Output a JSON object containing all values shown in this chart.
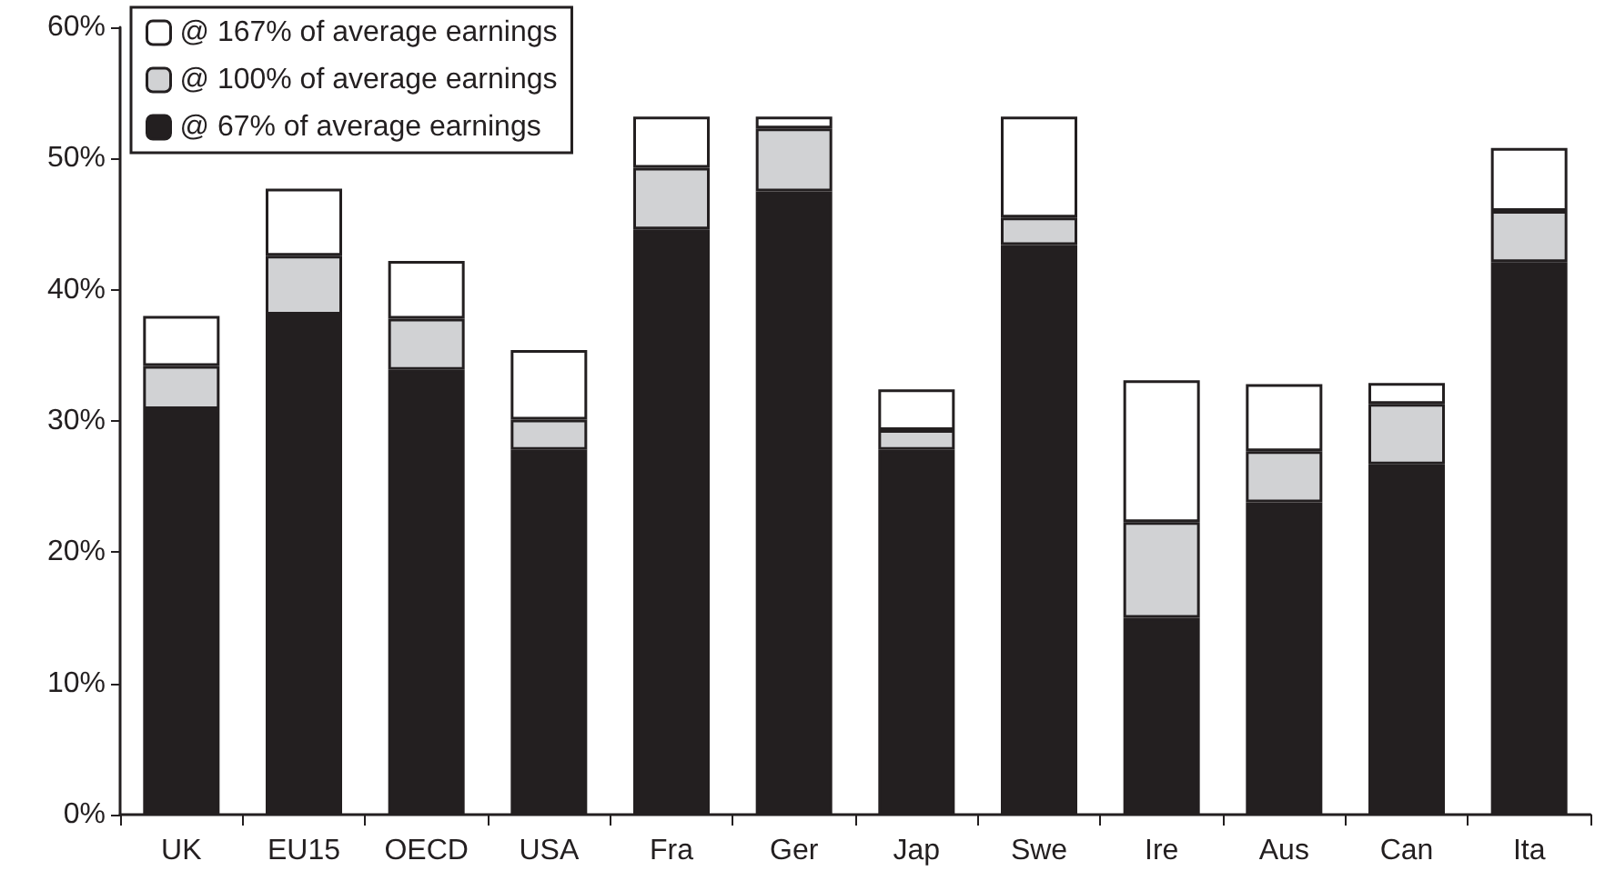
{
  "chart_data": {
    "type": "bar",
    "stacked": true,
    "legend": "top left",
    "grid": false,
    "categories": [
      "UK",
      "EU15",
      "OECD",
      "USA",
      "Fra",
      "Ger",
      "Jap",
      "Swe",
      "Ire",
      "Aus",
      "Can",
      "Ita"
    ],
    "series": [
      {
        "name": "@ 67% of average earnings",
        "color": "#231f20",
        "values": [
          30.9,
          38.1,
          33.9,
          27.8,
          44.6,
          47.5,
          27.8,
          43.4,
          15.0,
          23.8,
          26.7,
          42.1
        ]
      },
      {
        "name": "@ 100% of average earnings",
        "color": "#d1d2d4",
        "values": [
          3.3,
          4.5,
          3.9,
          2.3,
          4.7,
          4.8,
          1.5,
          2.1,
          7.3,
          3.9,
          4.6,
          3.9
        ]
      },
      {
        "name": "@ 167% of average earnings",
        "color": "#ffffff",
        "values": [
          3.8,
          5.1,
          4.4,
          5.3,
          3.9,
          0.9,
          3.1,
          7.7,
          10.8,
          5.1,
          1.6,
          4.8
        ]
      }
    ],
    "ylim": [
      0,
      60
    ],
    "yticks": [
      {
        "value": 0,
        "label": "0%"
      },
      {
        "value": 10,
        "label": "10%"
      },
      {
        "value": 20,
        "label": "20%"
      },
      {
        "value": 30,
        "label": "30%"
      },
      {
        "value": 40,
        "label": "40%"
      },
      {
        "value": 50,
        "label": "50%"
      },
      {
        "value": 60,
        "label": "60%"
      }
    ]
  }
}
